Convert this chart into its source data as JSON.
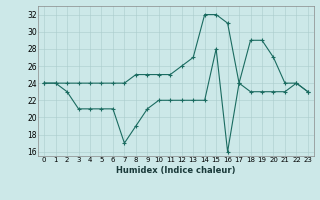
{
  "xlabel": "Humidex (Indice chaleur)",
  "background_color": "#cce8e8",
  "line_color": "#1a6b60",
  "xlim": [
    -0.5,
    23.5
  ],
  "ylim": [
    15.5,
    33.0
  ],
  "xticks": [
    0,
    1,
    2,
    3,
    4,
    5,
    6,
    7,
    8,
    9,
    10,
    11,
    12,
    13,
    14,
    15,
    16,
    17,
    18,
    19,
    20,
    21,
    22,
    23
  ],
  "yticks": [
    16,
    18,
    20,
    22,
    24,
    26,
    28,
    30,
    32
  ],
  "series1_x": [
    0,
    1,
    2,
    3,
    4,
    5,
    6,
    7,
    8,
    9,
    10,
    11,
    12,
    13,
    14,
    15,
    16,
    17,
    18,
    19,
    20,
    21,
    22,
    23
  ],
  "series1_y": [
    24,
    24,
    23,
    21,
    21,
    21,
    21,
    17,
    19,
    21,
    22,
    22,
    22,
    22,
    22,
    28,
    16,
    24,
    23,
    23,
    23,
    23,
    24,
    23
  ],
  "series2_x": [
    0,
    1,
    2,
    3,
    4,
    5,
    6,
    7,
    8,
    9,
    10,
    11,
    12,
    13,
    14,
    15,
    16,
    17,
    18,
    19,
    20,
    21,
    22,
    23
  ],
  "series2_y": [
    24,
    24,
    24,
    24,
    24,
    24,
    24,
    24,
    25,
    25,
    25,
    25,
    26,
    27,
    32,
    32,
    31,
    24,
    29,
    29,
    27,
    24,
    24,
    23
  ]
}
